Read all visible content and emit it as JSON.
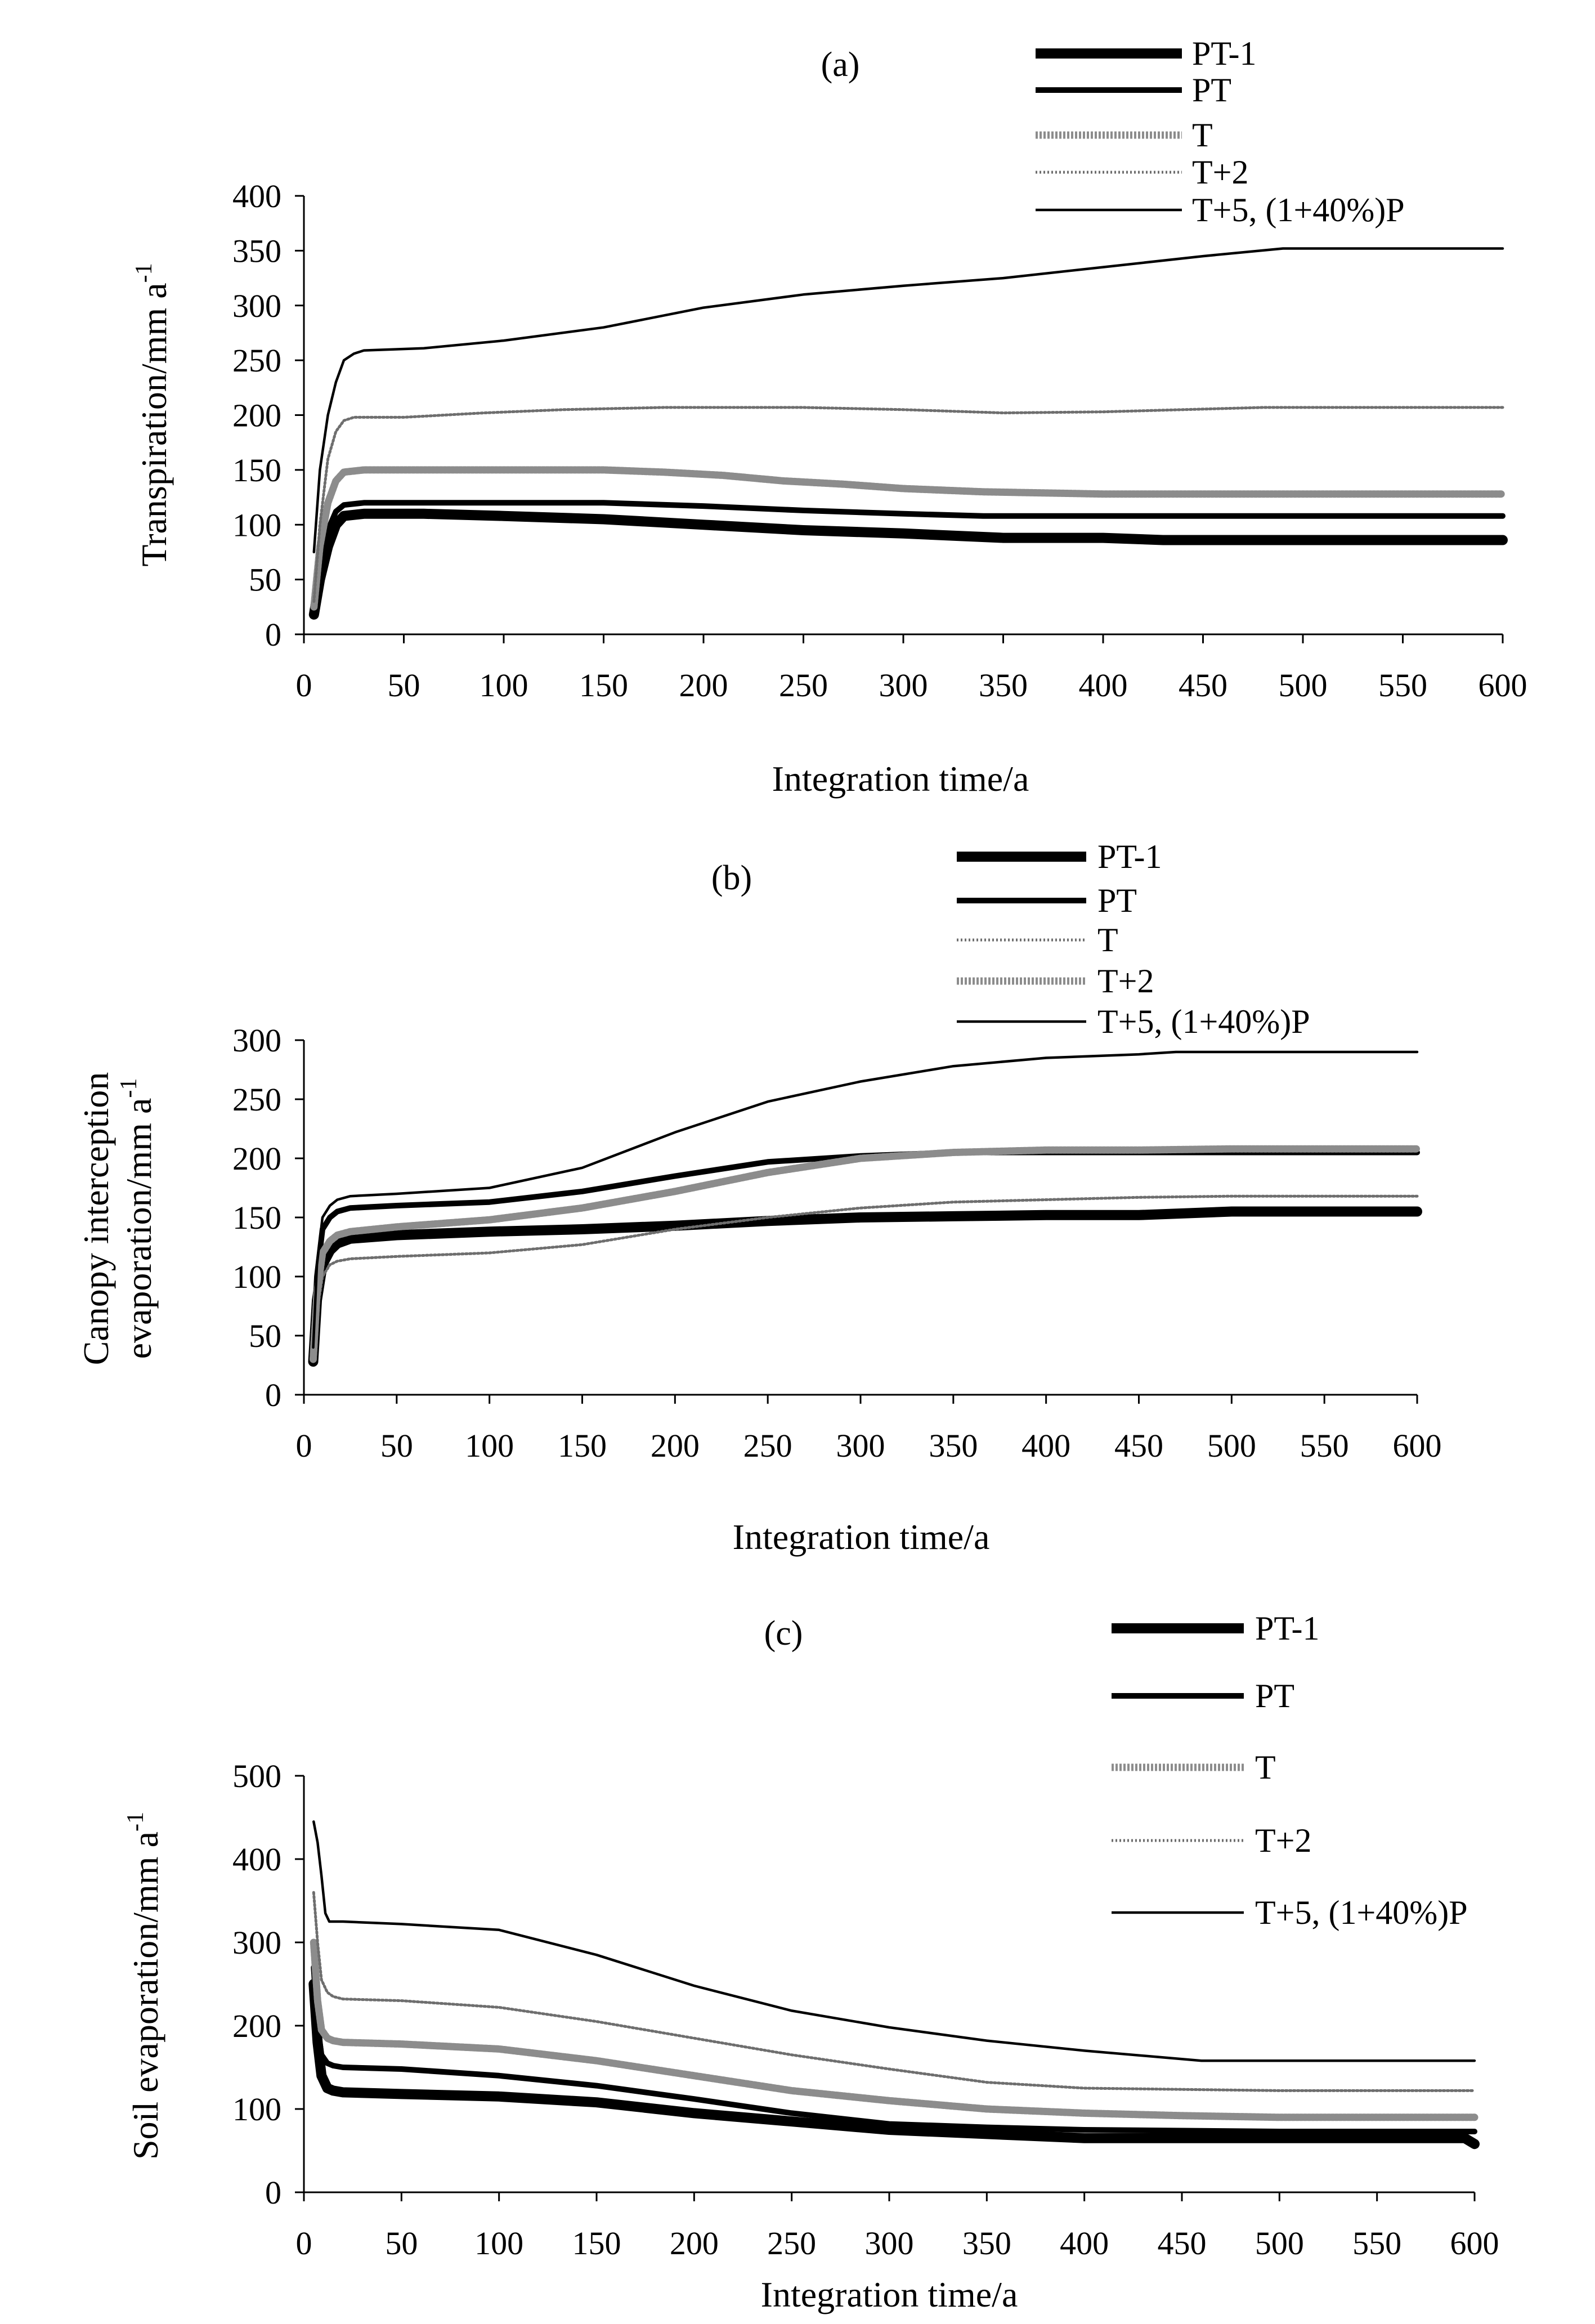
{
  "chart_data": [
    {
      "type": "line",
      "panel": "(a)",
      "ylabel_main": "Transpiration/mm a",
      "ylabel_sup": "-1",
      "xlabel": "Integration time/a",
      "xlim": [
        0,
        600
      ],
      "ylim": [
        0,
        400
      ],
      "xticks": [
        0,
        50,
        100,
        150,
        200,
        250,
        300,
        350,
        400,
        450,
        500,
        550,
        600
      ],
      "yticks": [
        0,
        50,
        100,
        150,
        200,
        250,
        300,
        350,
        400
      ],
      "grid": false,
      "legend": "top-right",
      "series": [
        {
          "name": "PT-1",
          "style": "thick",
          "x": [
            5,
            8,
            12,
            16,
            20,
            30,
            60,
            100,
            150,
            200,
            250,
            300,
            350,
            400,
            430,
            500,
            600
          ],
          "y": [
            18,
            50,
            80,
            100,
            108,
            110,
            110,
            108,
            105,
            100,
            95,
            92,
            88,
            88,
            86,
            86,
            86
          ]
        },
        {
          "name": "PT",
          "style": "medium",
          "x": [
            5,
            8,
            12,
            16,
            20,
            30,
            60,
            100,
            150,
            200,
            250,
            300,
            340,
            400,
            500,
            600
          ],
          "y": [
            20,
            60,
            95,
            112,
            118,
            120,
            120,
            120,
            120,
            117,
            113,
            110,
            108,
            108,
            108,
            108
          ]
        },
        {
          "name": "T",
          "style": "gray-chain",
          "x": [
            5,
            8,
            12,
            16,
            20,
            30,
            60,
            100,
            150,
            180,
            210,
            240,
            270,
            300,
            340,
            400,
            500,
            600
          ],
          "y": [
            25,
            80,
            120,
            140,
            148,
            150,
            150,
            150,
            150,
            148,
            145,
            140,
            137,
            133,
            130,
            128,
            128,
            128
          ]
        },
        {
          "name": "T+2",
          "style": "dotted",
          "x": [
            5,
            8,
            12,
            16,
            20,
            25,
            50,
            90,
            130,
            180,
            250,
            300,
            350,
            400,
            480,
            600
          ],
          "y": [
            30,
            100,
            160,
            185,
            195,
            198,
            198,
            202,
            205,
            207,
            207,
            205,
            202,
            203,
            207,
            207
          ]
        },
        {
          "name": "T+5, (1+40%)P",
          "style": "thin",
          "x": [
            5,
            8,
            12,
            16,
            20,
            25,
            30,
            60,
            100,
            150,
            200,
            250,
            300,
            350,
            400,
            450,
            490,
            600
          ],
          "y": [
            75,
            150,
            200,
            230,
            250,
            256,
            259,
            261,
            268,
            280,
            298,
            310,
            318,
            325,
            335,
            345,
            352,
            352
          ]
        }
      ]
    },
    {
      "type": "line",
      "panel": "(b)",
      "ylabel_line1": "Canopy interception",
      "ylabel_line2_main": "evaporation/mm a",
      "ylabel_sup": "-1",
      "xlabel": "Integration time/a",
      "xlim": [
        0,
        600
      ],
      "ylim": [
        0,
        300
      ],
      "xticks": [
        0,
        50,
        100,
        150,
        200,
        250,
        300,
        350,
        400,
        450,
        500,
        550,
        600
      ],
      "yticks": [
        0,
        50,
        100,
        150,
        200,
        250,
        300
      ],
      "grid": false,
      "legend": "top-right",
      "series": [
        {
          "name": "PT-1",
          "style": "thick",
          "x": [
            5,
            7,
            10,
            14,
            18,
            25,
            50,
            100,
            150,
            200,
            250,
            300,
            350,
            400,
            450,
            500,
            550,
            600
          ],
          "y": [
            28,
            80,
            110,
            122,
            128,
            132,
            135,
            138,
            140,
            143,
            147,
            150,
            151,
            152,
            152,
            155,
            155,
            155
          ]
        },
        {
          "name": "PT",
          "style": "medium",
          "x": [
            5,
            7,
            10,
            14,
            18,
            25,
            50,
            100,
            150,
            200,
            250,
            300,
            350,
            400,
            500,
            600
          ],
          "y": [
            35,
            100,
            140,
            150,
            155,
            158,
            160,
            163,
            172,
            185,
            197,
            202,
            205,
            205,
            205,
            205
          ]
        },
        {
          "name": "T",
          "style": "dotted",
          "x": [
            5,
            7,
            10,
            14,
            18,
            25,
            50,
            100,
            150,
            200,
            250,
            300,
            350,
            400,
            450,
            500,
            600
          ],
          "y": [
            28,
            70,
            100,
            110,
            113,
            115,
            117,
            120,
            127,
            140,
            150,
            158,
            163,
            165,
            167,
            168,
            168
          ]
        },
        {
          "name": "T+2",
          "style": "gray-chain",
          "x": [
            5,
            7,
            10,
            14,
            18,
            25,
            50,
            100,
            150,
            200,
            250,
            300,
            350,
            400,
            450,
            500,
            600
          ],
          "y": [
            30,
            85,
            120,
            130,
            135,
            138,
            142,
            148,
            158,
            172,
            188,
            200,
            205,
            207,
            207,
            208,
            208
          ]
        },
        {
          "name": "T+5, (1+40%)P",
          "style": "thin",
          "x": [
            5,
            7,
            10,
            14,
            18,
            25,
            50,
            100,
            150,
            200,
            250,
            300,
            350,
            400,
            450,
            470,
            600
          ],
          "y": [
            40,
            110,
            150,
            160,
            165,
            168,
            170,
            175,
            192,
            222,
            248,
            265,
            278,
            285,
            288,
            290,
            290
          ]
        }
      ]
    },
    {
      "type": "line",
      "panel": "(c)",
      "ylabel_main": "Soil evaporation/mm a",
      "ylabel_sup": "-1",
      "xlabel": "Integration time/a",
      "xlim": [
        0,
        600
      ],
      "ylim": [
        0,
        500
      ],
      "xticks": [
        0,
        50,
        100,
        150,
        200,
        250,
        300,
        350,
        400,
        450,
        500,
        550,
        600
      ],
      "yticks": [
        0,
        100,
        200,
        300,
        400,
        500
      ],
      "grid": false,
      "legend": "right",
      "series": [
        {
          "name": "PT-1",
          "style": "thick",
          "x": [
            5,
            7,
            9,
            12,
            15,
            20,
            50,
            100,
            150,
            200,
            250,
            300,
            350,
            400,
            500,
            595,
            600
          ],
          "y": [
            250,
            180,
            140,
            125,
            122,
            120,
            118,
            115,
            108,
            95,
            85,
            75,
            70,
            65,
            65,
            65,
            58
          ]
        },
        {
          "name": "PT",
          "style": "medium",
          "x": [
            5,
            7,
            9,
            12,
            15,
            20,
            50,
            100,
            150,
            200,
            250,
            300,
            350,
            400,
            500,
            600
          ],
          "y": [
            270,
            200,
            165,
            155,
            152,
            150,
            148,
            140,
            128,
            112,
            95,
            82,
            78,
            75,
            73,
            73
          ]
        },
        {
          "name": "T",
          "style": "gray-chain",
          "x": [
            5,
            7,
            9,
            12,
            15,
            20,
            50,
            100,
            150,
            200,
            250,
            300,
            350,
            400,
            450,
            500,
            600
          ],
          "y": [
            300,
            230,
            195,
            185,
            182,
            180,
            178,
            172,
            158,
            140,
            122,
            110,
            100,
            95,
            92,
            90,
            90
          ]
        },
        {
          "name": "T+2",
          "style": "dotted",
          "x": [
            5,
            7,
            9,
            12,
            15,
            20,
            50,
            100,
            150,
            200,
            250,
            300,
            350,
            400,
            500,
            600
          ],
          "y": [
            360,
            300,
            255,
            240,
            235,
            232,
            230,
            222,
            205,
            185,
            165,
            148,
            132,
            125,
            122,
            122
          ]
        },
        {
          "name": "T+5, (1+40%)P",
          "style": "thin",
          "x": [
            5,
            7,
            9,
            11,
            13,
            20,
            50,
            100,
            150,
            200,
            250,
            300,
            350,
            400,
            450,
            460,
            600
          ],
          "y": [
            445,
            420,
            380,
            335,
            325,
            325,
            322,
            315,
            285,
            248,
            218,
            198,
            182,
            170,
            160,
            158,
            158
          ]
        }
      ]
    }
  ]
}
